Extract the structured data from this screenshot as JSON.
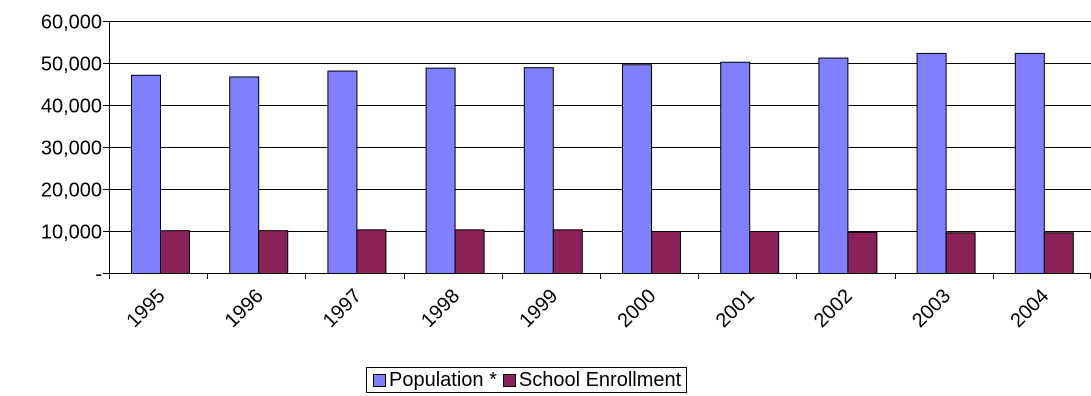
{
  "chart_data": {
    "type": "bar",
    "title": "",
    "xlabel": "",
    "ylabel": "",
    "ylim": [
      0,
      60000
    ],
    "y_ticks": [
      {
        "value": 0,
        "label": "-"
      },
      {
        "value": 10000,
        "label": "10,000"
      },
      {
        "value": 20000,
        "label": "20,000"
      },
      {
        "value": 30000,
        "label": "30,000"
      },
      {
        "value": 40000,
        "label": "40,000"
      },
      {
        "value": 50000,
        "label": "50,000"
      },
      {
        "value": 60000,
        "label": "60,000"
      }
    ],
    "categories": [
      "1995",
      "1996",
      "1997",
      "1998",
      "1999",
      "2000",
      "2001",
      "2002",
      "2003",
      "2004"
    ],
    "series": [
      {
        "name": "Population *",
        "color": "#8080ff",
        "values": [
          47200,
          46800,
          48200,
          48900,
          49000,
          49700,
          50300,
          51300,
          52400,
          52400
        ]
      },
      {
        "name": "School Enrollment",
        "color": "#8b2257",
        "values": [
          10200,
          10200,
          10400,
          10400,
          10400,
          10000,
          10000,
          9800,
          9700,
          9700
        ]
      }
    ],
    "grid": true,
    "legend_position": "bottom-center"
  }
}
